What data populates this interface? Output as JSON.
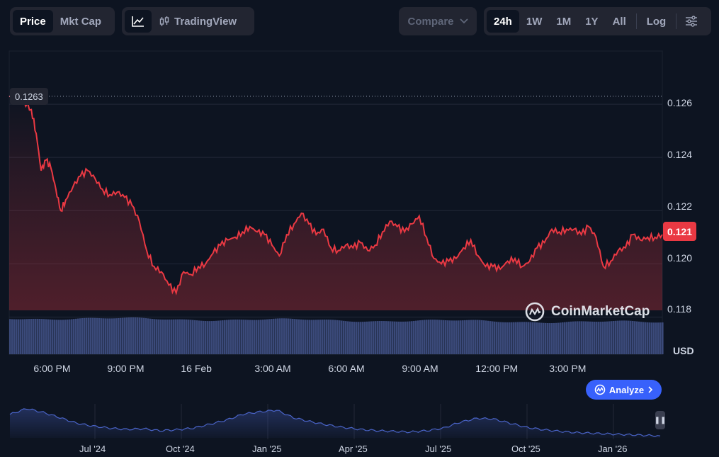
{
  "toolbar": {
    "price_tab": "Price",
    "mktcap_tab": "Mkt Cap",
    "tradingview_label": "TradingView",
    "compare_label": "Compare",
    "ranges": [
      "24h",
      "1W",
      "1M",
      "1Y",
      "All"
    ],
    "log_label": "Log"
  },
  "chart_data": {
    "type": "line",
    "currency": "USD",
    "current_price": "0.121",
    "open_price": "0.1263",
    "ylim": [
      0.1166,
      0.128
    ],
    "y_ticks": [
      "0.126",
      "0.124",
      "0.122",
      "0.120",
      "0.118"
    ],
    "x_ticks": [
      "6:00 PM",
      "9:00 PM",
      "16 Feb",
      "3:00 AM",
      "6:00 AM",
      "9:00 AM",
      "12:00 PM",
      "3:00 PM"
    ],
    "x_hours": [
      0,
      3,
      6,
      9,
      12,
      15,
      18,
      21
    ],
    "series": [
      {
        "hours": [
          -1.8,
          -1.2,
          -0.9,
          -0.7,
          -0.5,
          -0.3,
          -0.1,
          0.1,
          0.3,
          0.5,
          0.8,
          1.1,
          1.4,
          1.7,
          2.0,
          2.3,
          2.6,
          2.9,
          3.2,
          3.5,
          3.8,
          4.1,
          4.4,
          4.7,
          5.0,
          5.3,
          5.6,
          5.9,
          6.2,
          6.5,
          6.8,
          7.1,
          7.4,
          7.7,
          8.0,
          8.3,
          8.6,
          8.9,
          9.2,
          9.5,
          9.8,
          10.1,
          10.4,
          10.7,
          11.0,
          11.3,
          11.6,
          11.9,
          12.2,
          12.5,
          12.8,
          13.1,
          13.4,
          13.7,
          14.0,
          14.3,
          14.6,
          14.9,
          15.2,
          15.5,
          15.8,
          16.1,
          16.4,
          16.7,
          17.0,
          17.3,
          17.6,
          17.9,
          18.2,
          18.5,
          18.8,
          19.1,
          19.4,
          19.7,
          20.0,
          20.3,
          20.6,
          20.9,
          21.2,
          21.5,
          21.8,
          22.1,
          22.4,
          22.7,
          23.0,
          23.3,
          23.6,
          23.9,
          24.2,
          24.5,
          24.8
        ],
        "values": [
          0.1263,
          0.1261,
          0.1258,
          0.1249,
          0.1235,
          0.1239,
          0.1236,
          0.1228,
          0.122,
          0.1224,
          0.1229,
          0.1233,
          0.1235,
          0.1232,
          0.1228,
          0.1226,
          0.1227,
          0.1225,
          0.1222,
          0.1216,
          0.1205,
          0.1199,
          0.1197,
          0.1192,
          0.1189,
          0.1197,
          0.1196,
          0.1199,
          0.12,
          0.1204,
          0.1207,
          0.1209,
          0.121,
          0.1212,
          0.1214,
          0.1212,
          0.1211,
          0.1207,
          0.1203,
          0.1211,
          0.1215,
          0.1219,
          0.1215,
          0.1211,
          0.1213,
          0.1206,
          0.1205,
          0.1207,
          0.1206,
          0.1208,
          0.1205,
          0.1207,
          0.1212,
          0.1216,
          0.1214,
          0.1212,
          0.1215,
          0.1218,
          0.121,
          0.1202,
          0.12,
          0.1201,
          0.1202,
          0.1206,
          0.1209,
          0.1203,
          0.1199,
          0.1199,
          0.1198,
          0.1201,
          0.1202,
          0.1199,
          0.1201,
          0.1206,
          0.1208,
          0.1213,
          0.1212,
          0.1213,
          0.1213,
          0.1211,
          0.1214,
          0.121,
          0.1199,
          0.1201,
          0.1205,
          0.1206,
          0.1211,
          0.1209,
          0.121,
          0.121,
          0.1211
        ]
      }
    ],
    "volume_level": 0.85,
    "navigator": {
      "labels": [
        "Jul '24",
        "Oct '24",
        "Jan '25",
        "Apr '25",
        "Jul '25",
        "Oct '25",
        "Jan '26"
      ],
      "values": [
        0.72,
        0.9,
        0.78,
        0.62,
        0.45,
        0.36,
        0.3,
        0.26,
        0.28,
        0.22,
        0.25,
        0.3,
        0.42,
        0.55,
        0.73,
        0.8,
        0.85,
        0.62,
        0.5,
        0.4,
        0.32,
        0.26,
        0.22,
        0.2,
        0.18,
        0.22,
        0.3,
        0.48,
        0.6,
        0.58,
        0.45,
        0.32,
        0.25,
        0.2,
        0.16,
        0.14,
        0.12,
        0.1,
        0.08,
        0.06
      ]
    }
  },
  "analyze_label": "Analyze",
  "watermark": "CoinMarketCap",
  "colors": {
    "line": "#ea3943",
    "background": "#0d1421",
    "volume": "#3b4a7a",
    "navigator": "#4a64c8",
    "accent": "#3861fb"
  }
}
